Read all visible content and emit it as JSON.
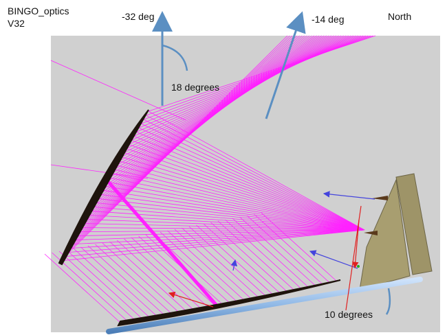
{
  "title": {
    "line1": "BINGO_optics",
    "line2": "V32"
  },
  "labels": {
    "angle_left": "-32 deg",
    "angle_right": "-14 deg",
    "north": "North",
    "angle_between": "18 degrees",
    "tilt": "10 degrees"
  },
  "colors": {
    "background": "#d0d0d0",
    "rays": "#ff22ff",
    "mirror": "#1e140c",
    "structure": "#9e9468",
    "rail": "#8fb8e6",
    "pointer_arrows": "#5b8fc2",
    "normals": "#4444dd",
    "markers": "#e02020"
  },
  "icons": [
    "up-arrow-icon",
    "curved-arrow-icon"
  ]
}
